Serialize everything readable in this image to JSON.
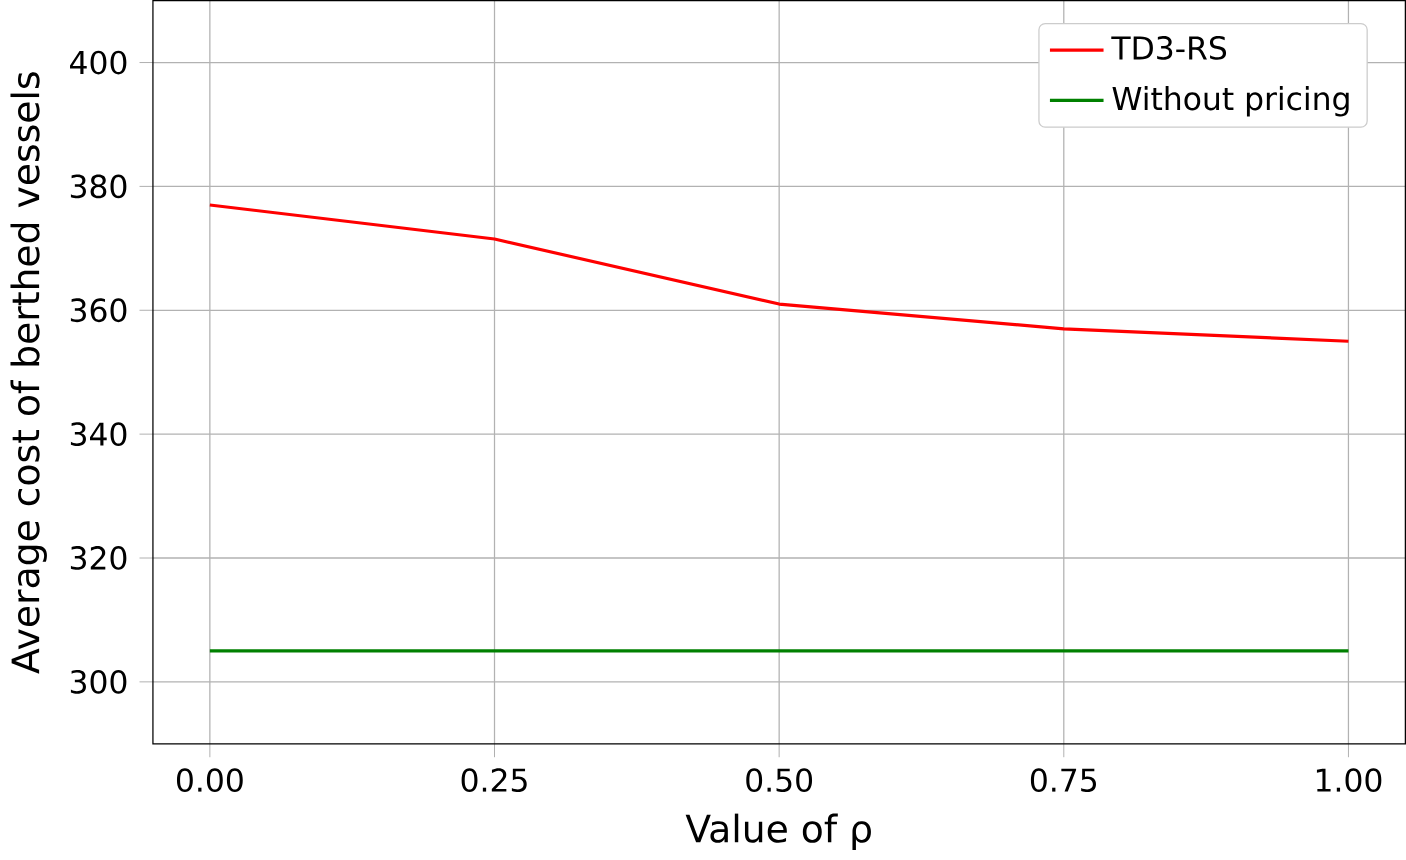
{
  "chart_data": {
    "type": "line",
    "xlabel": "Value of ρ",
    "ylabel": "Average cost of berthed vessels",
    "x": [
      0,
      0.25,
      0.5,
      0.75,
      1.0
    ],
    "series": [
      {
        "name": "TD3-RS",
        "color": "#ff0000",
        "values": [
          377,
          371.5,
          361,
          357,
          355
        ]
      },
      {
        "name": "Without pricing",
        "color": "#008000",
        "values": [
          305,
          305,
          305,
          305,
          305
        ]
      }
    ],
    "xlim": [
      -0.05,
      1.05
    ],
    "ylim": [
      290,
      410
    ],
    "xticks": [
      {
        "value": 0,
        "label": "0.00"
      },
      {
        "value": 0.25,
        "label": "0.25"
      },
      {
        "value": 0.5,
        "label": "0.50"
      },
      {
        "value": 0.75,
        "label": "0.75"
      },
      {
        "value": 1.0,
        "label": "1.00"
      }
    ],
    "yticks": [
      300,
      320,
      340,
      360,
      380,
      400
    ],
    "grid": true,
    "legend": "top right"
  }
}
